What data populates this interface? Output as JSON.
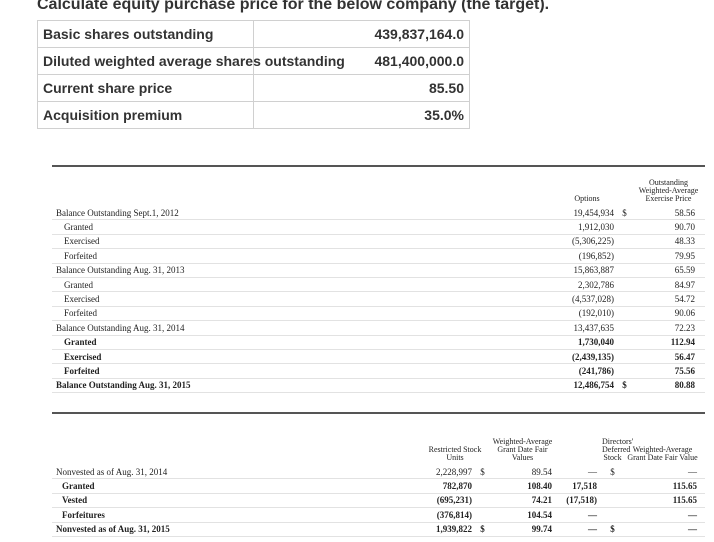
{
  "title": "Calculate equity purchase price for the below company (the target).",
  "inputs": {
    "rows": [
      [
        "Basic shares outstanding",
        "439,837,164.0"
      ],
      [
        "Diluted weighted average shares outstanding",
        "481,400,000.0"
      ],
      [
        "Current share price",
        "85.50"
      ],
      [
        "Acquisition premium",
        "35.0%"
      ]
    ]
  },
  "options_table": {
    "headers": [
      "Options",
      "Outstanding Weighted-Average Exercise Price"
    ],
    "rows": [
      [
        "Balance Outstanding Sept.1, 2012",
        "19,454,934",
        "$",
        "58.56"
      ],
      [
        "Granted",
        "1,912,030",
        null,
        "90.70"
      ],
      [
        "Exercised",
        "(5,306,225)",
        null,
        "48.33"
      ],
      [
        "Forfeited",
        "(196,852)",
        null,
        "79.95"
      ],
      [
        "Balance Outstanding Aug. 31, 2013",
        "15,863,887",
        null,
        "65.59"
      ],
      [
        "Granted",
        "2,302,786",
        null,
        "84.97"
      ],
      [
        "Exercised",
        "(4,537,028)",
        null,
        "54.72"
      ],
      [
        "Forfeited",
        "(192,010)",
        null,
        "90.06"
      ],
      [
        "Balance Outstanding Aug. 31, 2014",
        "13,437,635",
        null,
        "72.23"
      ],
      [
        "Granted",
        "1,730,040",
        null,
        "112.94"
      ],
      [
        "Exercised",
        "(2,439,135)",
        null,
        "56.47"
      ],
      [
        "Forfeited",
        "(241,786)",
        null,
        "75.56"
      ],
      [
        "Balance Outstanding Aug. 31, 2015",
        "12,486,754",
        "$",
        "80.88"
      ]
    ]
  },
  "rsu_table": {
    "headers": [
      "Restricted Stock Units",
      "Weighted-Average Grant Date Fair Values",
      "Directors' Deferred Stock",
      "Weighted-Average Grant Date Fair Value"
    ],
    "rows": [
      [
        "Nonvested as of Aug. 31, 2014",
        "2,228,997",
        "$",
        "89.54",
        "—",
        "$",
        "—"
      ],
      [
        "Granted",
        "782,870",
        null,
        "108.40",
        "17,518",
        null,
        "115.65"
      ],
      [
        "Vested",
        "(695,231)",
        null,
        "74.21",
        "(17,518)",
        null,
        "115.65"
      ],
      [
        "Forfeitures",
        "(376,814)",
        null,
        "104.54",
        "—",
        null,
        "—"
      ],
      [
        "Nonvested as of Aug. 31, 2015",
        "1,939,822",
        "$",
        "99.74",
        "—",
        "$",
        "—"
      ]
    ]
  }
}
